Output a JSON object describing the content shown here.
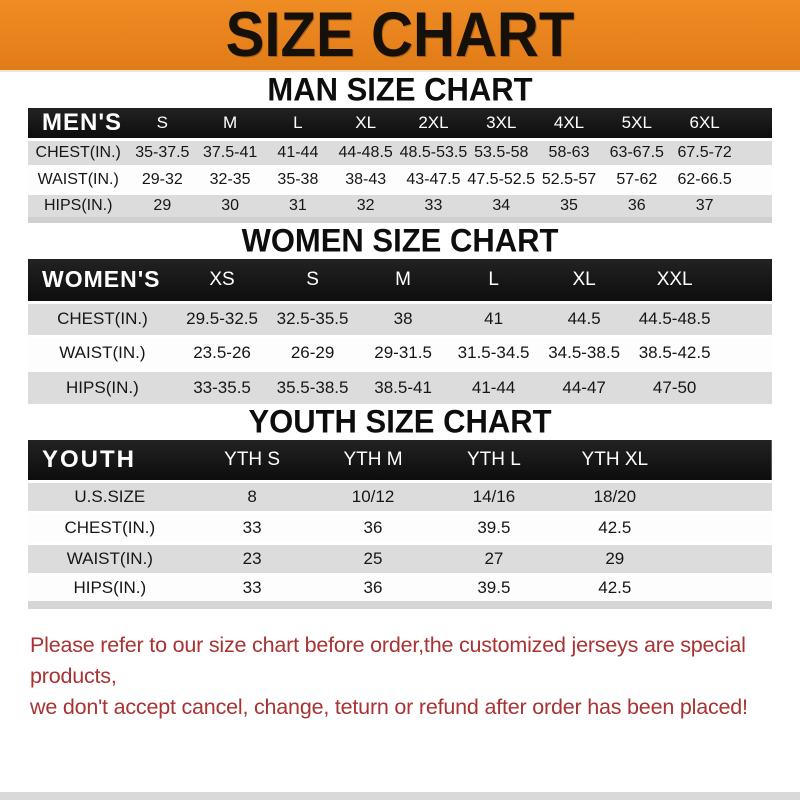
{
  "banner": {
    "title": "SIZE CHART"
  },
  "colors": {
    "banner_orange": "#E8831D",
    "band_black": "#141414",
    "row_gray": "#DCDCDC",
    "note_red": "#A93232"
  },
  "sections": {
    "men": {
      "title": "MAN SIZE CHART",
      "table": {
        "corner": "MEN'S",
        "sizes": [
          "S",
          "M",
          "L",
          "XL",
          "2XL",
          "3XL",
          "4XL",
          "5XL",
          "6XL"
        ],
        "rows": [
          {
            "label": "CHEST(IN.)",
            "values": [
              "35-37.5",
              "37.5-41",
              "41-44",
              "44-48.5",
              "48.5-53.5",
              "53.5-58",
              "58-63",
              "63-67.5",
              "67.5-72"
            ]
          },
          {
            "label": "WAIST(IN.)",
            "values": [
              "29-32",
              "32-35",
              "35-38",
              "38-43",
              "43-47.5",
              "47.5-52.5",
              "52.5-57",
              "57-62",
              "62-66.5"
            ]
          },
          {
            "label": "HIPS(IN.)",
            "values": [
              "29",
              "30",
              "31",
              "32",
              "33",
              "34",
              "35",
              "36",
              "37"
            ]
          }
        ]
      }
    },
    "women": {
      "title": "WOMEN SIZE CHART",
      "table": {
        "corner": "WOMEN'S",
        "sizes": [
          "XS",
          "S",
          "M",
          "L",
          "XL",
          "XXL"
        ],
        "rows": [
          {
            "label": "CHEST(IN.)",
            "values": [
              "29.5-32.5",
              "32.5-35.5",
              "38",
              "41",
              "44.5",
              "44.5-48.5"
            ]
          },
          {
            "label": "WAIST(IN.)",
            "values": [
              "23.5-26",
              "26-29",
              "29-31.5",
              "31.5-34.5",
              "34.5-38.5",
              "38.5-42.5"
            ]
          },
          {
            "label": "HIPS(IN.)",
            "values": [
              "33-35.5",
              "35.5-38.5",
              "38.5-41",
              "41-44",
              "44-47",
              "47-50"
            ]
          }
        ]
      }
    },
    "youth": {
      "title": "YOUTH SIZE CHART",
      "table": {
        "corner": "YOUTH",
        "sizes": [
          "YTH S",
          "YTH M",
          "YTH L",
          "YTH XL"
        ],
        "rows": [
          {
            "label": "U.S.SIZE",
            "values": [
              "8",
              "10/12",
              "14/16",
              "18/20"
            ]
          },
          {
            "label": "CHEST(IN.)",
            "values": [
              "33",
              "36",
              "39.5",
              "42.5"
            ]
          },
          {
            "label": "WAIST(IN.)",
            "values": [
              "23",
              "25",
              "27",
              "29"
            ]
          },
          {
            "label": "HIPS(IN.)",
            "values": [
              "33",
              "36",
              "39.5",
              "42.5"
            ]
          }
        ]
      }
    }
  },
  "footer": {
    "line1": "Please refer to our size chart before order,the customized jerseys are special products,",
    "line2": "we don't accept cancel, change, teturn or refund after order has been placed!"
  }
}
